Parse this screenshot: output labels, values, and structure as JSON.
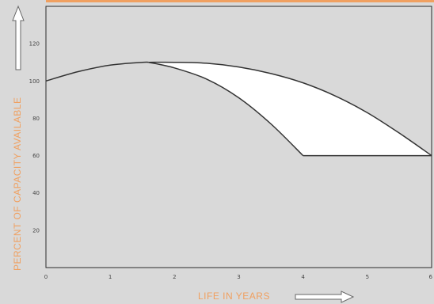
{
  "colors": {
    "background": "#d9d9d9",
    "accent": "#f0a060",
    "curve": "#333333",
    "fill": "#ffffff",
    "frame": "#2a2a2a"
  },
  "chart_data": {
    "type": "line",
    "title": "",
    "xlabel": "LIFE IN YEARS",
    "ylabel": "PERCENT OF CAPACITY AVAILABLE",
    "xlim": [
      0,
      6
    ],
    "ylim": [
      0,
      140
    ],
    "x_ticks": [
      0,
      1,
      2,
      3,
      4,
      5,
      6
    ],
    "y_ticks": [
      20,
      40,
      60,
      80,
      100,
      120
    ],
    "grid": false,
    "legend": "none",
    "series": [
      {
        "x": [
          0,
          0.5,
          1.0,
          1.5,
          1.6
        ],
        "y": [
          100,
          105,
          108.5,
          110,
          110
        ]
      },
      {
        "x": [
          1.6,
          2.0,
          2.5,
          3.0,
          3.5,
          4.0
        ],
        "y": [
          110,
          107,
          101,
          91,
          77,
          60
        ]
      },
      {
        "x": [
          1.6,
          2.0,
          2.5,
          3.0,
          3.5,
          4.0,
          4.5,
          5.0,
          5.5,
          6.0
        ],
        "y": [
          110,
          110,
          109.5,
          107.5,
          104,
          99,
          92,
          83,
          72,
          60
        ]
      },
      {
        "x": [
          4.0,
          6.0
        ],
        "y": [
          60,
          60
        ]
      }
    ]
  }
}
